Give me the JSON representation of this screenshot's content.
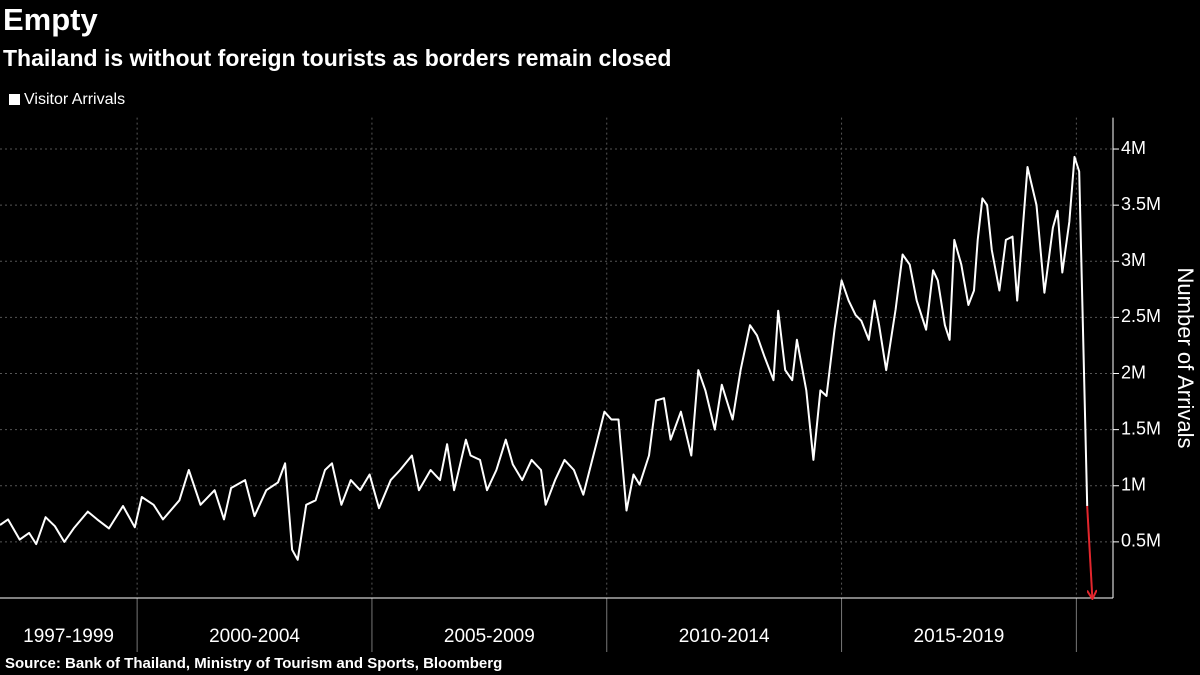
{
  "chart_data": {
    "type": "line",
    "title": "Empty",
    "subtitle": "Thailand is without foreign tourists as borders remain closed",
    "source": "Source: Bank of Thailand, Ministry of Tourism and Sports, Bloomberg",
    "y_axis_label": "Number of Arrivals",
    "x": [
      1997.08,
      1997.25,
      1997.5,
      1997.7,
      1997.85,
      1998.05,
      1998.25,
      1998.45,
      1998.65,
      1998.95,
      1999.15,
      1999.4,
      1999.7,
      1999.95,
      2000.1,
      2000.35,
      2000.55,
      2000.9,
      2001.1,
      2001.35,
      2001.65,
      2001.85,
      2002.0,
      2002.3,
      2002.5,
      2002.75,
      2003.0,
      2003.15,
      2003.3,
      2003.42,
      2003.6,
      2003.8,
      2004.0,
      2004.15,
      2004.35,
      2004.55,
      2004.75,
      2004.95,
      2005.15,
      2005.4,
      2005.6,
      2005.85,
      2006.0,
      2006.25,
      2006.45,
      2006.6,
      2006.75,
      2007.0,
      2007.1,
      2007.3,
      2007.45,
      2007.65,
      2007.85,
      2008.0,
      2008.2,
      2008.4,
      2008.6,
      2008.7,
      2008.9,
      2009.1,
      2009.3,
      2009.5,
      2009.8,
      2009.95,
      2010.1,
      2010.25,
      2010.42,
      2010.57,
      2010.7,
      2010.9,
      2011.05,
      2011.22,
      2011.36,
      2011.58,
      2011.8,
      2011.95,
      2012.1,
      2012.3,
      2012.45,
      2012.68,
      2012.85,
      2013.05,
      2013.2,
      2013.35,
      2013.55,
      2013.65,
      2013.8,
      2013.95,
      2014.05,
      2014.25,
      2014.4,
      2014.55,
      2014.68,
      2014.85,
      2015.0,
      2015.15,
      2015.3,
      2015.42,
      2015.58,
      2015.7,
      2015.8,
      2015.95,
      2016.15,
      2016.3,
      2016.45,
      2016.6,
      2016.8,
      2016.95,
      2017.05,
      2017.2,
      2017.3,
      2017.4,
      2017.55,
      2017.7,
      2017.82,
      2017.9,
      2018.0,
      2018.1,
      2018.2,
      2018.36,
      2018.5,
      2018.64,
      2018.74,
      2018.96,
      2019.15,
      2019.32,
      2019.5,
      2019.6,
      2019.7,
      2019.85,
      2019.96,
      2020.06,
      2020.23,
      2020.34
    ],
    "series": [
      {
        "name": "Visitor Arrivals",
        "color": "#ffffff",
        "values": [
          650000,
          700000,
          520000,
          580000,
          480000,
          720000,
          640000,
          500000,
          620000,
          770000,
          700000,
          620000,
          820000,
          630000,
          900000,
          830000,
          700000,
          870000,
          1140000,
          830000,
          960000,
          700000,
          980000,
          1050000,
          730000,
          960000,
          1030000,
          1200000,
          430000,
          340000,
          830000,
          870000,
          1140000,
          1200000,
          830000,
          1050000,
          960000,
          1100000,
          800000,
          1050000,
          1140000,
          1270000,
          960000,
          1140000,
          1050000,
          1370000,
          960000,
          1410000,
          1270000,
          1230000,
          960000,
          1140000,
          1410000,
          1190000,
          1050000,
          1230000,
          1140000,
          830000,
          1050000,
          1230000,
          1140000,
          920000,
          1410000,
          1660000,
          1590000,
          1590000,
          780000,
          1100000,
          1010000,
          1270000,
          1760000,
          1780000,
          1410000,
          1660000,
          1270000,
          2030000,
          1850000,
          1500000,
          1900000,
          1590000,
          2030000,
          2430000,
          2340000,
          2160000,
          1940000,
          2560000,
          2030000,
          1940000,
          2300000,
          1850000,
          1230000,
          1850000,
          1800000,
          2390000,
          2830000,
          2650000,
          2520000,
          2470000,
          2300000,
          2650000,
          2430000,
          2030000,
          2570000,
          3060000,
          2970000,
          2650000,
          2390000,
          2920000,
          2830000,
          2430000,
          2300000,
          3190000,
          2970000,
          2610000,
          2740000,
          3190000,
          3560000,
          3500000,
          3100000,
          2740000,
          3190000,
          3220000,
          2650000,
          3840000,
          3500000,
          2720000,
          3300000,
          3450000,
          2900000,
          3350000,
          3930000,
          3800000,
          820000,
          0
        ]
      }
    ],
    "drop_color": "#e3262d",
    "xlim": [
      1997.08,
      2020.78
    ],
    "xticks": [
      2000,
      2005,
      2010,
      2015,
      2020
    ],
    "x_periods": [
      {
        "label": "1997-1999",
        "start": 1997,
        "end": 2000
      },
      {
        "label": "2000-2004",
        "start": 2000,
        "end": 2005
      },
      {
        "label": "2005-2009",
        "start": 2005,
        "end": 2010
      },
      {
        "label": "2010-2014",
        "start": 2010,
        "end": 2015
      },
      {
        "label": "2015-2019",
        "start": 2015,
        "end": 2020
      }
    ],
    "ylim": [
      0,
      4280000
    ],
    "yticks": [
      {
        "value": 500000,
        "label": "0.5M"
      },
      {
        "value": 1000000,
        "label": "1M"
      },
      {
        "value": 1500000,
        "label": "1.5M"
      },
      {
        "value": 2000000,
        "label": "2M"
      },
      {
        "value": 2500000,
        "label": "2.5M"
      },
      {
        "value": 3000000,
        "label": "3M"
      },
      {
        "value": 3500000,
        "label": "3.5M"
      },
      {
        "value": 4000000,
        "label": "4M"
      }
    ],
    "grid": true,
    "legend": "top-left"
  }
}
